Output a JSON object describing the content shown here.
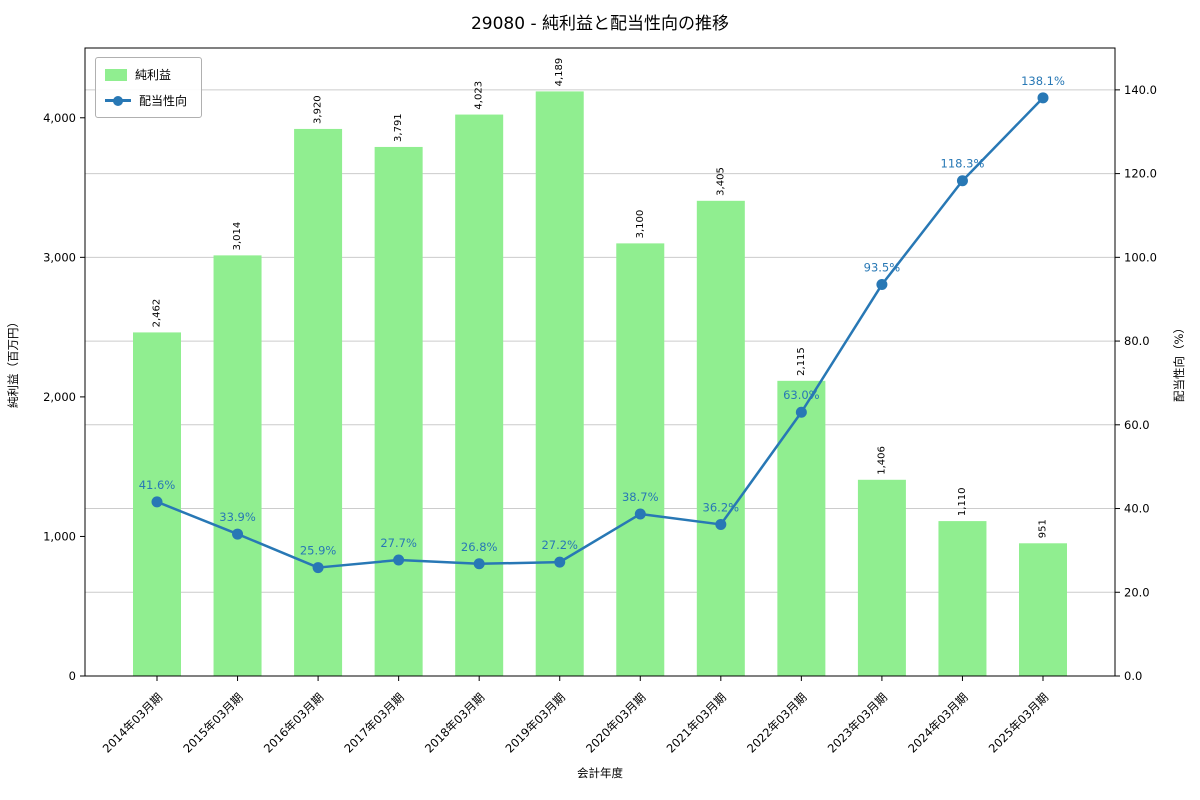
{
  "title": "29080 - 純利益と配当性向の推移",
  "chart_data": {
    "type": "bar+line",
    "categories": [
      "2014年03月期",
      "2015年03月期",
      "2016年03月期",
      "2017年03月期",
      "2018年03月期",
      "2019年03月期",
      "2020年03月期",
      "2021年03月期",
      "2022年03月期",
      "2023年03月期",
      "2024年03月期",
      "2025年03月期"
    ],
    "series": [
      {
        "name": "純利益",
        "type": "bar",
        "axis": "left",
        "color": "#90EE90",
        "values": [
          2462,
          3014,
          3920,
          3791,
          4023,
          4189,
          3100,
          3405,
          2115,
          1406,
          1110,
          951
        ]
      },
      {
        "name": "配当性向",
        "type": "line",
        "axis": "right",
        "color": "#2878b5",
        "label_suffix": "%",
        "values": [
          41.6,
          33.9,
          25.9,
          27.7,
          26.8,
          27.2,
          38.7,
          36.2,
          63.0,
          93.5,
          118.3,
          138.1
        ]
      }
    ],
    "xlabel": "会計年度",
    "ylabel_left": "純利益（百万円）",
    "ylabel_right": "配当性向（%）",
    "ylim_left": [
      0,
      4500
    ],
    "ylim_right": [
      0,
      150
    ],
    "yticks_left": [
      0,
      1000,
      2000,
      3000,
      4000
    ],
    "yticks_right": [
      0,
      20,
      40,
      60,
      80,
      100,
      120,
      140
    ],
    "grid": true,
    "legend_position": "upper left"
  }
}
